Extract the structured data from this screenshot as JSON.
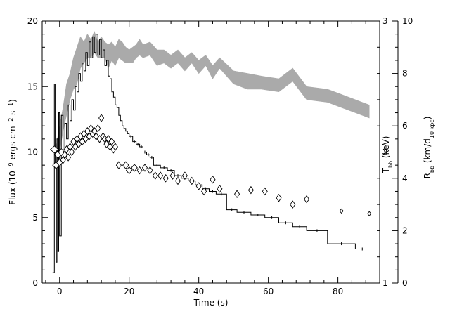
{
  "chart_data": {
    "type": "line",
    "xlabel": "Time (s)",
    "left_axis": {
      "label_text": "Flux (10",
      "label_sup1": "−9",
      "label_mid": " ergs cm",
      "label_sup2": "−2",
      "label_mid2": " s",
      "label_sup3": "−1",
      "label_end": ")",
      "ylim": [
        0,
        20
      ],
      "ticks": [
        0,
        5,
        10,
        15,
        20
      ],
      "tick_labels": [
        "0",
        "5",
        "10",
        "15",
        "20"
      ]
    },
    "tbb_axis": {
      "label_main": "T",
      "label_sub": "bb",
      "label_rest": " (keV)",
      "ylim": [
        1,
        3
      ],
      "ticks": [
        1,
        2,
        3
      ],
      "tick_labels": [
        "1",
        "2",
        "3"
      ]
    },
    "rbb_axis": {
      "label_main": "R",
      "label_sub": "bb",
      "label_mid": " (km/d",
      "label_sub2": "10 kpc",
      "label_end": ")",
      "ylim": [
        0,
        10
      ],
      "ticks": [
        0,
        2,
        4,
        6,
        8,
        10
      ],
      "tick_labels": [
        "0",
        "2",
        "4",
        "6",
        "8",
        "10"
      ]
    },
    "xlim": [
      -5,
      92
    ],
    "xticks": [
      0,
      20,
      40,
      60,
      80
    ],
    "xtick_labels": [
      "0",
      "20",
      "40",
      "60",
      "80"
    ],
    "series": [
      {
        "kind": "flux-histogram",
        "axis": "flux",
        "color": "#000000",
        "points": [
          [
            -2.0,
            0.8
          ],
          [
            -1.5,
            15.2
          ],
          [
            -1.25,
            8.9
          ],
          [
            -1.0,
            1.6
          ],
          [
            -0.75,
            11.0
          ],
          [
            -0.5,
            2.4
          ],
          [
            -0.25,
            13.0
          ],
          [
            0.0,
            3.6
          ],
          [
            0.5,
            12.8
          ],
          [
            1.0,
            9.8
          ],
          [
            1.5,
            12.2
          ],
          [
            2.0,
            11.0
          ],
          [
            2.5,
            13.6
          ],
          [
            3.0,
            12.4
          ],
          [
            3.5,
            14.0
          ],
          [
            4.0,
            13.2
          ],
          [
            4.5,
            15.0
          ],
          [
            5.0,
            14.6
          ],
          [
            5.5,
            16.0
          ],
          [
            6.0,
            15.4
          ],
          [
            6.5,
            16.8
          ],
          [
            7.0,
            16.2
          ],
          [
            7.5,
            17.6
          ],
          [
            8.0,
            16.6
          ],
          [
            8.5,
            18.4
          ],
          [
            9.0,
            17.2
          ],
          [
            9.5,
            18.8
          ],
          [
            10.0,
            17.6
          ],
          [
            10.5,
            19.0
          ],
          [
            11.0,
            17.4
          ],
          [
            11.5,
            18.6
          ],
          [
            12.0,
            17.2
          ],
          [
            12.5,
            17.8
          ],
          [
            13.0,
            16.6
          ],
          [
            13.5,
            17.0
          ],
          [
            14.0,
            15.8
          ],
          [
            14.5,
            15.6
          ],
          [
            15.0,
            14.6
          ],
          [
            15.5,
            14.2
          ],
          [
            16.0,
            13.6
          ],
          [
            16.5,
            13.4
          ],
          [
            17.0,
            12.8
          ],
          [
            17.5,
            12.4
          ],
          [
            18.0,
            12.0
          ],
          [
            18.5,
            11.8
          ],
          [
            19.0,
            11.6
          ],
          [
            19.5,
            11.4
          ],
          [
            20.0,
            11.2
          ],
          [
            21.0,
            10.8
          ],
          [
            22.0,
            10.6
          ],
          [
            23.0,
            10.4
          ],
          [
            24.0,
            10.0
          ],
          [
            25.0,
            9.8
          ],
          [
            26.0,
            9.6
          ],
          [
            27.0,
            9.0
          ],
          [
            29.0,
            8.8
          ],
          [
            31.0,
            8.6
          ],
          [
            33.0,
            8.2
          ],
          [
            35.0,
            8.0
          ],
          [
            37.0,
            7.8
          ],
          [
            39.0,
            7.5
          ],
          [
            41.0,
            7.2
          ],
          [
            43.0,
            7.0
          ],
          [
            45.0,
            6.8
          ],
          [
            48.0,
            5.6
          ],
          [
            51.0,
            5.4
          ],
          [
            55.0,
            5.2
          ],
          [
            59.0,
            5.0
          ],
          [
            63.0,
            4.6
          ],
          [
            67.0,
            4.3
          ],
          [
            71.0,
            4.0
          ],
          [
            77.0,
            3.0
          ],
          [
            85.0,
            2.6
          ],
          [
            89.0,
            2.6
          ]
        ]
      },
      {
        "kind": "tbb-diamonds",
        "axis": "flux",
        "color": "#000000",
        "points": [
          [
            -1.5,
            10.2,
            1.6
          ],
          [
            -1.0,
            9.0,
            1.4
          ],
          [
            -0.5,
            9.8,
            1.4
          ],
          [
            0.0,
            9.2,
            1.2
          ],
          [
            0.5,
            10.0,
            1.2
          ],
          [
            1.0,
            9.4,
            1.0
          ],
          [
            1.5,
            9.8,
            1.0
          ],
          [
            2.0,
            10.2,
            1.0
          ],
          [
            2.5,
            9.6,
            1.0
          ],
          [
            3.0,
            10.4,
            1.0
          ],
          [
            3.5,
            10.0,
            1.0
          ],
          [
            4.0,
            10.8,
            1.0
          ],
          [
            4.5,
            10.4,
            1.0
          ],
          [
            5.0,
            11.0,
            1.0
          ],
          [
            5.5,
            10.6,
            1.0
          ],
          [
            6.0,
            11.2,
            1.0
          ],
          [
            6.5,
            10.8,
            1.0
          ],
          [
            7.0,
            11.4,
            1.0
          ],
          [
            7.5,
            11.0,
            1.0
          ],
          [
            8.0,
            11.6,
            1.0
          ],
          [
            8.5,
            11.2,
            1.0
          ],
          [
            9.0,
            11.8,
            1.0
          ],
          [
            9.5,
            11.4,
            1.0
          ],
          [
            10.0,
            11.6,
            1.0
          ],
          [
            10.5,
            11.2,
            1.0
          ],
          [
            11.0,
            11.8,
            1.0
          ],
          [
            11.5,
            11.0,
            1.0
          ],
          [
            12.0,
            12.6,
            1.0
          ],
          [
            12.5,
            11.2,
            1.0
          ],
          [
            13.0,
            11.0,
            1.0
          ],
          [
            13.5,
            10.6,
            1.0
          ],
          [
            14.0,
            11.0,
            1.0
          ],
          [
            14.5,
            10.4,
            1.0
          ],
          [
            15.0,
            10.8,
            1.0
          ],
          [
            15.5,
            10.2,
            1.0
          ],
          [
            16.0,
            10.4,
            1.0
          ],
          [
            17.0,
            9.0,
            1.0
          ],
          [
            19.0,
            9.0,
            1.2
          ],
          [
            20.0,
            8.6,
            1.2
          ],
          [
            21.5,
            8.8,
            1.2
          ],
          [
            23.0,
            8.6,
            1.0
          ],
          [
            24.5,
            8.8,
            1.0
          ],
          [
            26.0,
            8.6,
            1.0
          ],
          [
            27.5,
            8.2,
            1.0
          ],
          [
            29.0,
            8.2,
            1.0
          ],
          [
            30.5,
            8.0,
            1.0
          ],
          [
            32.5,
            8.2,
            1.0
          ],
          [
            34.0,
            7.8,
            1.0
          ],
          [
            36.0,
            8.2,
            1.0
          ],
          [
            38.0,
            7.8,
            1.0
          ],
          [
            40.0,
            7.4,
            1.0
          ],
          [
            41.5,
            7.0,
            1.0
          ],
          [
            44.0,
            7.9,
            1.0
          ],
          [
            46.0,
            7.2,
            1.0
          ],
          [
            51.0,
            6.8,
            1.0
          ],
          [
            55.0,
            7.1,
            1.0
          ],
          [
            59.0,
            7.0,
            1.0
          ],
          [
            63.0,
            6.5,
            1.0
          ],
          [
            67.0,
            6.0,
            1.0
          ],
          [
            71.0,
            6.4,
            1.0
          ],
          [
            81.0,
            5.5,
            0.6
          ],
          [
            89.0,
            5.3,
            0.6
          ]
        ]
      },
      {
        "kind": "rbb-band",
        "axis": "rbb",
        "color": "#aaaaaa",
        "points": [
          [
            -1.0,
            4.3,
            5.2
          ],
          [
            0.0,
            5.0,
            6.0
          ],
          [
            1.0,
            5.8,
            6.7
          ],
          [
            2.0,
            6.4,
            7.6
          ],
          [
            3.0,
            7.0,
            8.0
          ],
          [
            4.0,
            7.4,
            8.6
          ],
          [
            5.0,
            7.6,
            9.0
          ],
          [
            6.0,
            8.2,
            9.4
          ],
          [
            7.0,
            8.4,
            9.2
          ],
          [
            8.0,
            8.6,
            9.5
          ],
          [
            9.0,
            8.6,
            9.3
          ],
          [
            10.0,
            8.8,
            9.6
          ],
          [
            11.0,
            8.6,
            9.2
          ],
          [
            12.0,
            8.6,
            9.4
          ],
          [
            13.0,
            8.6,
            9.2
          ],
          [
            14.0,
            8.2,
            9.1
          ],
          [
            15.0,
            8.5,
            9.2
          ],
          [
            16.0,
            8.3,
            9.0
          ],
          [
            17.0,
            8.6,
            9.3
          ],
          [
            18.0,
            8.5,
            9.2
          ],
          [
            19.0,
            8.4,
            9.0
          ],
          [
            20.0,
            8.4,
            8.9
          ],
          [
            21.0,
            8.4,
            9.0
          ],
          [
            22.0,
            8.6,
            9.1
          ],
          [
            23.0,
            8.7,
            9.3
          ],
          [
            24.0,
            8.6,
            9.1
          ],
          [
            26.0,
            8.7,
            9.2
          ],
          [
            28.0,
            8.3,
            8.9
          ],
          [
            30.0,
            8.4,
            8.9
          ],
          [
            32.0,
            8.2,
            8.7
          ],
          [
            34.0,
            8.4,
            8.9
          ],
          [
            36.0,
            8.1,
            8.6
          ],
          [
            38.0,
            8.4,
            8.8
          ],
          [
            40.0,
            8.0,
            8.5
          ],
          [
            42.0,
            8.3,
            8.7
          ],
          [
            44.0,
            7.8,
            8.3
          ],
          [
            46.0,
            8.2,
            8.6
          ],
          [
            50.0,
            7.6,
            8.1
          ],
          [
            54.0,
            7.4,
            8.0
          ],
          [
            58.0,
            7.4,
            7.9
          ],
          [
            63.0,
            7.3,
            7.8
          ],
          [
            67.0,
            7.7,
            8.2
          ],
          [
            71.0,
            7.0,
            7.5
          ],
          [
            77.0,
            6.9,
            7.4
          ],
          [
            81.0,
            6.7,
            7.2
          ],
          [
            85.0,
            6.5,
            7.0
          ],
          [
            89.0,
            6.3,
            6.8
          ]
        ]
      }
    ]
  }
}
